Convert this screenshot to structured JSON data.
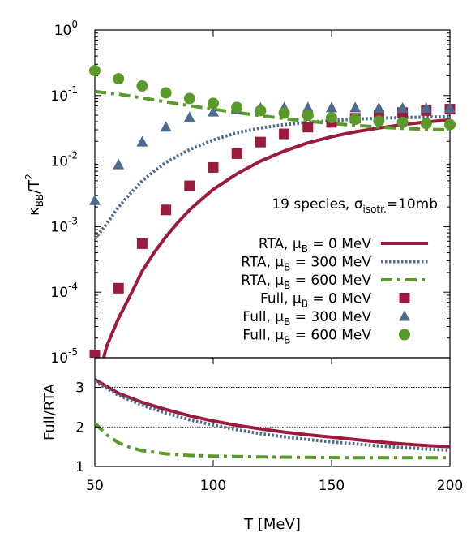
{
  "chart_data": [
    {
      "type": "line",
      "panel": "top",
      "ylabel_base": "κ",
      "ylabel_sub": "BB",
      "ylabel_tail": "/T",
      "ylabel_sup": "2",
      "yscale": "log",
      "ylim": [
        1e-05,
        1
      ],
      "xlim": [
        50,
        200
      ],
      "yticks": [
        {
          "base": "10",
          "exp": "-5",
          "value": 1e-05
        },
        {
          "base": "10",
          "exp": "-4",
          "value": 0.0001
        },
        {
          "base": "10",
          "exp": "-3",
          "value": 0.001
        },
        {
          "base": "10",
          "exp": "-2",
          "value": 0.01
        },
        {
          "base": "10",
          "exp": "-1",
          "value": 0.1
        },
        {
          "base": "10",
          "exp": "0",
          "value": 1
        }
      ],
      "annotation": {
        "prefix": "19 species, σ",
        "sub": "isotr.",
        "suffix": "=10mb"
      },
      "series": [
        {
          "label_prefix": "RTA, μ",
          "label_sub": "B",
          "label_value": " =     0 MeV",
          "style": "solid",
          "color": "#9b1b3c",
          "points": [
            [
              50,
              3e-06
            ],
            [
              55,
              1.5e-05
            ],
            [
              60,
              4e-05
            ],
            [
              65,
              9e-05
            ],
            [
              70,
              0.00021
            ],
            [
              75,
              0.0004
            ],
            [
              80,
              0.0007
            ],
            [
              85,
              0.00115
            ],
            [
              90,
              0.0018
            ],
            [
              95,
              0.0026
            ],
            [
              100,
              0.0037
            ],
            [
              110,
              0.0064
            ],
            [
              120,
              0.01
            ],
            [
              130,
              0.0142
            ],
            [
              140,
              0.019
            ],
            [
              150,
              0.0235
            ],
            [
              160,
              0.028
            ],
            [
              170,
              0.032
            ],
            [
              180,
              0.036
            ],
            [
              190,
              0.0395
            ],
            [
              200,
              0.0425
            ]
          ]
        },
        {
          "label_prefix": "RTA, μ",
          "label_sub": "B",
          "label_value": " = 300 MeV",
          "style": "dotted",
          "color": "#4d6a8f",
          "points": [
            [
              50,
              0.00065
            ],
            [
              55,
              0.0011
            ],
            [
              60,
              0.002
            ],
            [
              65,
              0.0032
            ],
            [
              70,
              0.005
            ],
            [
              75,
              0.007
            ],
            [
              80,
              0.0095
            ],
            [
              85,
              0.012
            ],
            [
              90,
              0.015
            ],
            [
              100,
              0.021
            ],
            [
              110,
              0.027
            ],
            [
              120,
              0.032
            ],
            [
              130,
              0.036
            ],
            [
              140,
              0.039
            ],
            [
              150,
              0.0415
            ],
            [
              160,
              0.0435
            ],
            [
              170,
              0.045
            ],
            [
              180,
              0.046
            ],
            [
              190,
              0.0468
            ],
            [
              200,
              0.0475
            ]
          ]
        },
        {
          "label_prefix": "RTA, μ",
          "label_sub": "B",
          "label_value": " = 600 MeV",
          "style": "dashdot",
          "color": "#5a9a2b",
          "points": [
            [
              50,
              0.115
            ],
            [
              60,
              0.105
            ],
            [
              70,
              0.092
            ],
            [
              80,
              0.08
            ],
            [
              90,
              0.07
            ],
            [
              100,
              0.062
            ],
            [
              110,
              0.055
            ],
            [
              120,
              0.0495
            ],
            [
              130,
              0.0445
            ],
            [
              140,
              0.0405
            ],
            [
              150,
              0.0375
            ],
            [
              160,
              0.035
            ],
            [
              170,
              0.033
            ],
            [
              180,
              0.0315
            ],
            [
              190,
              0.0305
            ],
            [
              200,
              0.03
            ]
          ]
        },
        {
          "label_prefix": "Full, μ",
          "label_sub": "B",
          "label_value": " =     0 MeV",
          "style": "square",
          "color": "#9b1b3c",
          "points": [
            [
              50,
              1.1e-05
            ],
            [
              60,
              0.000115
            ],
            [
              70,
              0.00055
            ],
            [
              80,
              0.0018
            ],
            [
              90,
              0.0042
            ],
            [
              100,
              0.008
            ],
            [
              110,
              0.013
            ],
            [
              120,
              0.0195
            ],
            [
              130,
              0.026
            ],
            [
              140,
              0.033
            ],
            [
              150,
              0.039
            ],
            [
              160,
              0.045
            ],
            [
              170,
              0.05
            ],
            [
              180,
              0.055
            ],
            [
              190,
              0.059
            ],
            [
              200,
              0.062
            ]
          ]
        },
        {
          "label_prefix": "Full, μ",
          "label_sub": "B",
          "label_value": " =   300 MeV",
          "style": "triangle",
          "color": "#4d6a8f",
          "points": [
            [
              50,
              0.0025
            ],
            [
              60,
              0.0088
            ],
            [
              70,
              0.0195
            ],
            [
              80,
              0.033
            ],
            [
              90,
              0.046
            ],
            [
              100,
              0.056
            ],
            [
              110,
              0.061
            ],
            [
              120,
              0.064
            ],
            [
              130,
              0.065
            ],
            [
              140,
              0.065
            ],
            [
              150,
              0.065
            ],
            [
              160,
              0.065
            ],
            [
              170,
              0.064
            ],
            [
              180,
              0.064
            ],
            [
              190,
              0.064
            ],
            [
              200,
              0.064
            ]
          ]
        },
        {
          "label_prefix": "Full, μ",
          "label_sub": "B",
          "label_value": " =   600 MeV",
          "style": "circle",
          "color": "#5a9a2b",
          "points": [
            [
              50,
              0.24
            ],
            [
              60,
              0.18
            ],
            [
              70,
              0.14
            ],
            [
              80,
              0.11
            ],
            [
              90,
              0.09
            ],
            [
              100,
              0.076
            ],
            [
              110,
              0.066
            ],
            [
              120,
              0.059
            ],
            [
              130,
              0.054
            ],
            [
              140,
              0.05
            ],
            [
              150,
              0.046
            ],
            [
              160,
              0.0435
            ],
            [
              170,
              0.041
            ],
            [
              180,
              0.039
            ],
            [
              190,
              0.0375
            ],
            [
              200,
              0.036
            ]
          ]
        }
      ]
    },
    {
      "type": "line",
      "panel": "bottom",
      "ylabel": "Full/RTA",
      "xlabel": "T [MeV]",
      "xlim": [
        50,
        200
      ],
      "ylim": [
        1,
        3.75
      ],
      "xticks": [
        "50",
        "100",
        "150",
        "200"
      ],
      "yticks": [
        "1",
        "2",
        "3"
      ],
      "reference_lines": [
        2,
        3
      ],
      "series": [
        {
          "style": "solid",
          "color": "#9b1b3c",
          "points": [
            [
              50,
              3.2
            ],
            [
              60,
              2.85
            ],
            [
              70,
              2.62
            ],
            [
              80,
              2.44
            ],
            [
              90,
              2.28
            ],
            [
              100,
              2.15
            ],
            [
              110,
              2.04
            ],
            [
              120,
              1.95
            ],
            [
              130,
              1.87
            ],
            [
              140,
              1.8
            ],
            [
              150,
              1.74
            ],
            [
              160,
              1.68
            ],
            [
              170,
              1.62
            ],
            [
              180,
              1.57
            ],
            [
              190,
              1.53
            ],
            [
              200,
              1.5
            ]
          ]
        },
        {
          "style": "dotted",
          "color": "#4d6a8f",
          "points": [
            [
              50,
              3.15
            ],
            [
              60,
              2.8
            ],
            [
              70,
              2.55
            ],
            [
              80,
              2.35
            ],
            [
              90,
              2.18
            ],
            [
              100,
              2.05
            ],
            [
              110,
              1.93
            ],
            [
              120,
              1.83
            ],
            [
              130,
              1.75
            ],
            [
              140,
              1.68
            ],
            [
              150,
              1.62
            ],
            [
              160,
              1.57
            ],
            [
              170,
              1.52
            ],
            [
              180,
              1.48
            ],
            [
              190,
              1.44
            ],
            [
              200,
              1.41
            ]
          ]
        },
        {
          "style": "dashdot",
          "color": "#5a9a2b",
          "points": [
            [
              50,
              2.1
            ],
            [
              55,
              1.8
            ],
            [
              60,
              1.6
            ],
            [
              65,
              1.48
            ],
            [
              70,
              1.4
            ],
            [
              80,
              1.32
            ],
            [
              90,
              1.28
            ],
            [
              100,
              1.26
            ],
            [
              120,
              1.24
            ],
            [
              140,
              1.23
            ],
            [
              160,
              1.22
            ],
            [
              180,
              1.22
            ],
            [
              200,
              1.22
            ]
          ]
        }
      ]
    }
  ]
}
